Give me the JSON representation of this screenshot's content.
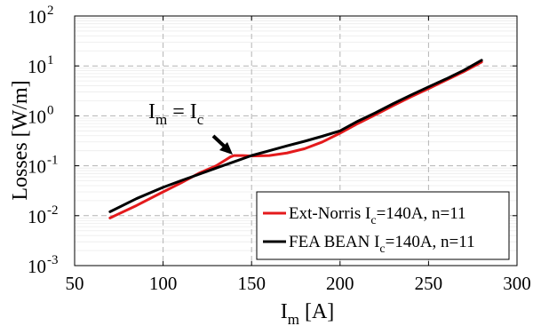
{
  "chart_data": {
    "type": "line",
    "xlabel": "I",
    "xlabel_sub": "m",
    "xlabel_unit": "[A]",
    "ylabel": "Losses [W/m]",
    "x_scale": "linear",
    "y_scale": "log",
    "xlim": [
      50,
      300
    ],
    "ylim": [
      0.001,
      100
    ],
    "x_ticks": [
      50,
      100,
      150,
      200,
      250,
      300
    ],
    "x_tick_labels": [
      "50",
      "100",
      "150",
      "200",
      "250",
      "300"
    ],
    "y_ticks": [
      0.001,
      0.01,
      0.1,
      1,
      10,
      100
    ],
    "y_tick_labels": [
      {
        "base": "10",
        "exp": "-3"
      },
      {
        "base": "10",
        "exp": "-2"
      },
      {
        "base": "10",
        "exp": "-1"
      },
      {
        "base": "10",
        "exp": "0"
      },
      {
        "base": "10",
        "exp": "1"
      },
      {
        "base": "10",
        "exp": "2"
      }
    ],
    "grid": true,
    "grid_style": "dashed major, faint minor",
    "legend_placement": "bottom-right",
    "series": [
      {
        "name_parts": [
          "Ext-Norris I",
          "c",
          "=140A, n=11"
        ],
        "color": "#e41a1c",
        "points": [
          [
            70,
            0.009
          ],
          [
            85,
            0.016
          ],
          [
            100,
            0.03
          ],
          [
            110,
            0.045
          ],
          [
            120,
            0.07
          ],
          [
            130,
            0.1
          ],
          [
            138,
            0.15
          ],
          [
            140,
            0.16
          ],
          [
            145,
            0.16
          ],
          [
            150,
            0.157
          ],
          [
            160,
            0.16
          ],
          [
            170,
            0.18
          ],
          [
            180,
            0.22
          ],
          [
            190,
            0.3
          ],
          [
            200,
            0.45
          ],
          [
            210,
            0.7
          ],
          [
            220,
            1.05
          ],
          [
            230,
            1.6
          ],
          [
            240,
            2.4
          ],
          [
            250,
            3.5
          ],
          [
            260,
            5.2
          ],
          [
            270,
            7.7
          ],
          [
            280,
            12
          ]
        ]
      },
      {
        "name_parts": [
          "FEA BEAN I",
          "c",
          "=140A, n=11"
        ],
        "color": "#000000",
        "points": [
          [
            70,
            0.012
          ],
          [
            85,
            0.022
          ],
          [
            100,
            0.037
          ],
          [
            110,
            0.05
          ],
          [
            120,
            0.067
          ],
          [
            130,
            0.09
          ],
          [
            140,
            0.12
          ],
          [
            150,
            0.16
          ],
          [
            160,
            0.2
          ],
          [
            170,
            0.25
          ],
          [
            180,
            0.31
          ],
          [
            190,
            0.39
          ],
          [
            200,
            0.5
          ],
          [
            210,
            0.78
          ],
          [
            220,
            1.15
          ],
          [
            230,
            1.75
          ],
          [
            240,
            2.6
          ],
          [
            250,
            3.8
          ],
          [
            260,
            5.5
          ],
          [
            270,
            8.2
          ],
          [
            280,
            13
          ]
        ]
      }
    ],
    "annotations": [
      {
        "text_parts": [
          "I",
          "m",
          " = I",
          "c"
        ],
        "points_to": [
          140,
          0.16
        ]
      }
    ]
  }
}
